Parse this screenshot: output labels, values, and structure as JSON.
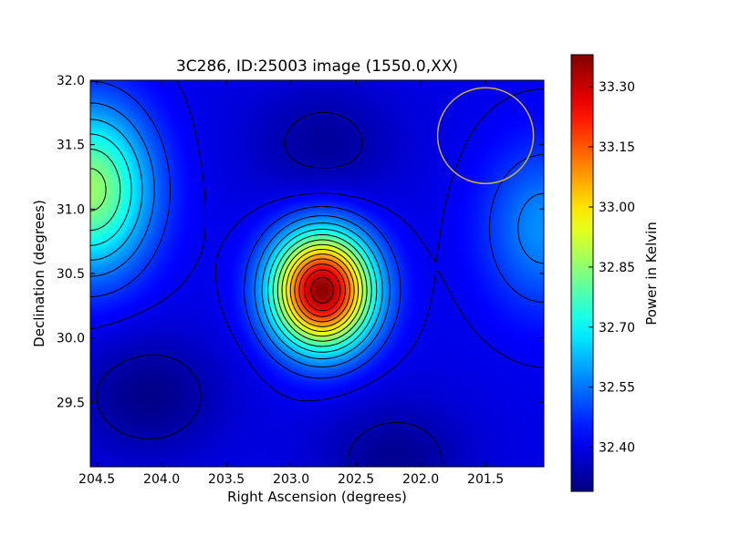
{
  "chart_data": {
    "type": "heatmap",
    "title": "3C286, ID:25003 image (1550.0,XX)",
    "xlabel": "Right Ascension (degrees)",
    "ylabel": "Declination (degrees)",
    "xlim": [
      204.55,
      201.05
    ],
    "ylim": [
      29.0,
      32.0
    ],
    "x_ticks": [
      204.5,
      204.0,
      203.5,
      203.0,
      202.5,
      202.0,
      201.5
    ],
    "x_tick_labels": [
      "204.5",
      "204.0",
      "203.5",
      "203.0",
      "202.5",
      "202.0",
      "201.5"
    ],
    "y_ticks": [
      29.5,
      30.0,
      30.5,
      31.0,
      31.5,
      32.0
    ],
    "y_tick_labels": [
      "29.5",
      "30.0",
      "30.5",
      "31.0",
      "31.5",
      "32.0"
    ],
    "colormap": "jet",
    "colorbar": {
      "label": "Power in Kelvin",
      "range": [
        32.29,
        33.38
      ],
      "ticks": [
        32.4,
        32.55,
        32.7,
        32.85,
        33.0,
        33.15,
        33.3
      ],
      "tick_labels": [
        "32.40",
        "32.55",
        "32.70",
        "32.85",
        "33.00",
        "33.15",
        "33.30"
      ]
    },
    "contours": true,
    "features": [
      {
        "kind": "peak",
        "ra": 202.76,
        "dec": 30.37,
        "value": 33.37
      },
      {
        "kind": "local_max",
        "ra": 204.55,
        "dec": 31.15,
        "value": 32.86
      },
      {
        "kind": "local_max",
        "ra": 201.05,
        "dec": 30.85,
        "value": 32.58
      },
      {
        "kind": "local_min",
        "ra": 202.75,
        "dec": 31.5,
        "value": 32.32
      },
      {
        "kind": "local_min",
        "ra": 204.1,
        "dec": 29.55,
        "value": 32.3
      },
      {
        "kind": "local_min",
        "ra": 202.2,
        "dec": 29.05,
        "value": 32.31
      }
    ],
    "annotations": [
      {
        "kind": "circle",
        "ra": 201.5,
        "dec": 31.57,
        "radius_deg": 0.37,
        "color": "#c8b43c"
      }
    ]
  }
}
